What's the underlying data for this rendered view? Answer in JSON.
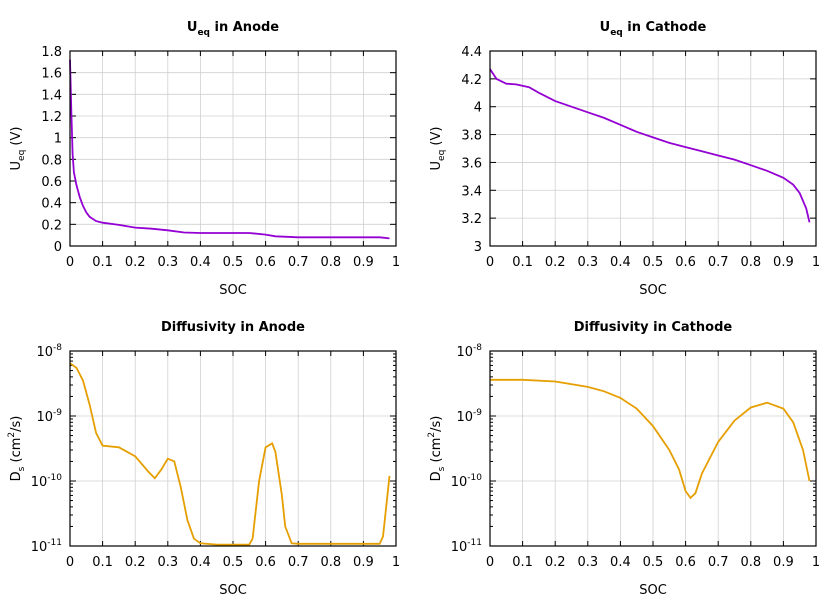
{
  "chart_data": [
    {
      "type": "line",
      "title": {
        "main": "U",
        "sub": "eq",
        "rest": " in Anode"
      },
      "xlabel": "SOC",
      "ylabel": {
        "parts": [
          [
            "U",
            ""
          ],
          [
            "eq",
            "sub"
          ],
          [
            " (V)",
            ""
          ]
        ]
      },
      "xlim": [
        0,
        1
      ],
      "ylim": [
        0,
        1.8
      ],
      "yscale": "linear",
      "grid": true,
      "color": "#9400d3",
      "xticks": [
        "0",
        "0.1",
        "0.2",
        "0.3",
        "0.4",
        "0.5",
        "0.6",
        "0.7",
        "0.8",
        "0.9",
        "1"
      ],
      "yticks": [
        "0",
        "0.2",
        "0.4",
        "0.6",
        "0.8",
        "1",
        "1.2",
        "1.4",
        "1.6",
        "1.8"
      ],
      "x": [
        0,
        0.004,
        0.008,
        0.012,
        0.02,
        0.03,
        0.04,
        0.05,
        0.06,
        0.08,
        0.1,
        0.15,
        0.2,
        0.25,
        0.3,
        0.35,
        0.4,
        0.45,
        0.5,
        0.55,
        0.6,
        0.63,
        0.7,
        0.8,
        0.9,
        0.95,
        0.98
      ],
      "y": [
        1.72,
        1.25,
        0.85,
        0.68,
        0.56,
        0.45,
        0.37,
        0.31,
        0.27,
        0.23,
        0.215,
        0.195,
        0.17,
        0.16,
        0.145,
        0.125,
        0.12,
        0.12,
        0.12,
        0.12,
        0.105,
        0.09,
        0.08,
        0.08,
        0.08,
        0.08,
        0.07
      ]
    },
    {
      "type": "line",
      "title": {
        "main": "U",
        "sub": "eq",
        "rest": " in Cathode"
      },
      "xlabel": "SOC",
      "ylabel": {
        "parts": [
          [
            "U",
            ""
          ],
          [
            "eq",
            "sub"
          ],
          [
            " (V)",
            ""
          ]
        ]
      },
      "xlim": [
        0,
        1
      ],
      "ylim": [
        3,
        4.4
      ],
      "yscale": "linear",
      "grid": true,
      "color": "#9400d3",
      "xticks": [
        "0",
        "0.1",
        "0.2",
        "0.3",
        "0.4",
        "0.5",
        "0.6",
        "0.7",
        "0.8",
        "0.9",
        "1"
      ],
      "yticks": [
        "3",
        "3.2",
        "3.4",
        "3.6",
        "3.8",
        "4",
        "4.2",
        "4.4"
      ],
      "x": [
        0,
        0.02,
        0.05,
        0.08,
        0.12,
        0.15,
        0.2,
        0.25,
        0.3,
        0.35,
        0.4,
        0.45,
        0.5,
        0.55,
        0.6,
        0.65,
        0.7,
        0.75,
        0.8,
        0.85,
        0.9,
        0.93,
        0.95,
        0.97,
        0.98
      ],
      "y": [
        4.27,
        4.2,
        4.165,
        4.16,
        4.14,
        4.1,
        4.04,
        4.0,
        3.96,
        3.92,
        3.87,
        3.82,
        3.78,
        3.74,
        3.71,
        3.68,
        3.65,
        3.62,
        3.58,
        3.54,
        3.49,
        3.44,
        3.38,
        3.27,
        3.17
      ]
    },
    {
      "type": "line",
      "title": {
        "main": "Diffusivity in Anode",
        "sub": "",
        "rest": ""
      },
      "xlabel": "SOC",
      "ylabel": {
        "parts": [
          [
            "D",
            ""
          ],
          [
            "s",
            "sub"
          ],
          [
            " (cm",
            ""
          ],
          [
            "2",
            "sup"
          ],
          [
            "/s)",
            ""
          ]
        ]
      },
      "xlim": [
        0,
        1
      ],
      "ylim": [
        1e-11,
        1e-08
      ],
      "yscale": "log",
      "grid": true,
      "color": "#e69f00",
      "xticks": [
        "0",
        "0.1",
        "0.2",
        "0.3",
        "0.4",
        "0.5",
        "0.6",
        "0.7",
        "0.8",
        "0.9",
        "1"
      ],
      "yticks": [
        "10^-11",
        "10^-10",
        "10^-9",
        "10^-8"
      ],
      "x": [
        0,
        0.02,
        0.04,
        0.06,
        0.08,
        0.1,
        0.15,
        0.2,
        0.24,
        0.26,
        0.28,
        0.3,
        0.32,
        0.34,
        0.36,
        0.38,
        0.4,
        0.45,
        0.55,
        0.56,
        0.58,
        0.6,
        0.62,
        0.63,
        0.65,
        0.66,
        0.68,
        0.7,
        0.9,
        0.95,
        0.96,
        0.97,
        0.98
      ],
      "y": [
        6.5e-09,
        5.5e-09,
        3.5e-09,
        1.5e-09,
        5.5e-10,
        3.5e-10,
        3.3e-10,
        2.4e-10,
        1.4e-10,
        1.1e-10,
        1.5e-10,
        2.2e-10,
        2e-10,
        8e-11,
        2.5e-11,
        1.3e-11,
        1.1e-11,
        1.05e-11,
        1.05e-11,
        1.3e-11,
        1e-10,
        3.3e-10,
        3.8e-10,
        2.8e-10,
        6e-11,
        2e-11,
        1.1e-11,
        1.08e-11,
        1.08e-11,
        1.08e-11,
        1.4e-11,
        4e-11,
        1.2e-10
      ]
    },
    {
      "type": "line",
      "title": {
        "main": "Diffusivity in Cathode",
        "sub": "",
        "rest": ""
      },
      "xlabel": "SOC",
      "ylabel": {
        "parts": [
          [
            "D",
            ""
          ],
          [
            "s",
            "sub"
          ],
          [
            " (cm",
            ""
          ],
          [
            "2",
            "sup"
          ],
          [
            "/s)",
            ""
          ]
        ]
      },
      "xlim": [
        0,
        1
      ],
      "ylim": [
        1e-11,
        1e-08
      ],
      "yscale": "log",
      "grid": true,
      "color": "#e69f00",
      "xticks": [
        "0",
        "0.1",
        "0.2",
        "0.3",
        "0.4",
        "0.5",
        "0.6",
        "0.7",
        "0.8",
        "0.9",
        "1"
      ],
      "yticks": [
        "10^-11",
        "10^-10",
        "10^-9",
        "10^-8"
      ],
      "x": [
        0,
        0.1,
        0.2,
        0.3,
        0.35,
        0.4,
        0.45,
        0.5,
        0.55,
        0.58,
        0.6,
        0.615,
        0.63,
        0.65,
        0.7,
        0.75,
        0.8,
        0.85,
        0.9,
        0.93,
        0.96,
        0.98
      ],
      "y": [
        3.6e-09,
        3.6e-09,
        3.4e-09,
        2.8e-09,
        2.4e-09,
        1.9e-09,
        1.3e-09,
        7e-10,
        3e-10,
        1.5e-10,
        7e-11,
        5.5e-11,
        6.5e-11,
        1.3e-10,
        4e-10,
        8.5e-10,
        1.35e-09,
        1.6e-09,
        1.3e-09,
        8e-10,
        3e-10,
        1e-10
      ]
    }
  ]
}
